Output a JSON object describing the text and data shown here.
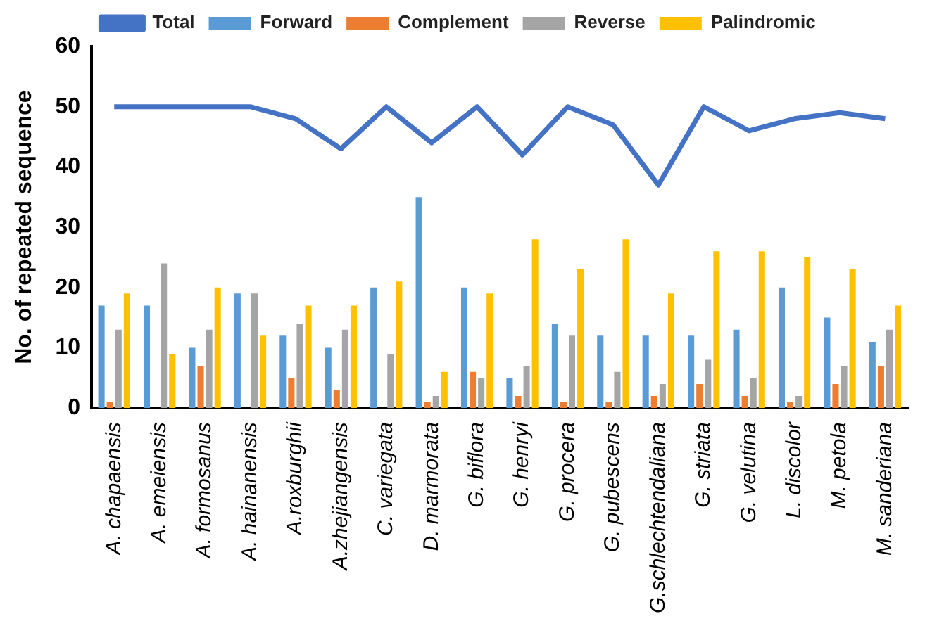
{
  "chart_data": {
    "type": "bar",
    "ylabel": "No. of repeated sequence",
    "categories": [
      "A. chapaensis",
      "A. emeiensis",
      "A. formosanus",
      "A. hainanensis",
      "A.roxburghii",
      "A.zhejiangensis",
      "C. variegata",
      "D. marmorata",
      "G. biflora",
      "G. henryi",
      "G. procera",
      "G. pubescens",
      "G.schlechtendaliana",
      "G. striata",
      "G. velutina",
      "L. discolor",
      "M. petola",
      "M. sanderiana"
    ],
    "series": [
      {
        "name": "Forward",
        "color": "#5b9bd5",
        "values": [
          17,
          17,
          10,
          19,
          12,
          10,
          20,
          35,
          20,
          5,
          14,
          12,
          12,
          12,
          13,
          20,
          15,
          11
        ]
      },
      {
        "name": "Complement",
        "color": "#ed7d31",
        "values": [
          1,
          0,
          7,
          0,
          5,
          3,
          0,
          1,
          6,
          2,
          1,
          1,
          2,
          4,
          2,
          1,
          4,
          7
        ]
      },
      {
        "name": "Reverse",
        "color": "#a5a5a5",
        "values": [
          13,
          24,
          13,
          19,
          14,
          13,
          9,
          2,
          5,
          7,
          12,
          6,
          4,
          8,
          5,
          2,
          7,
          13
        ]
      },
      {
        "name": "Palindromic",
        "color": "#ffc000",
        "values": [
          19,
          9,
          20,
          12,
          17,
          17,
          21,
          6,
          19,
          28,
          23,
          28,
          19,
          26,
          26,
          25,
          23,
          17
        ]
      },
      {
        "name": "Total",
        "type": "line",
        "color": "#4472c4",
        "values": [
          50,
          50,
          50,
          50,
          48,
          43,
          50,
          44,
          50,
          42,
          50,
          47,
          37,
          50,
          46,
          48,
          49,
          48
        ]
      }
    ],
    "ylim": [
      0,
      60
    ],
    "yticks": [
      0,
      10,
      20,
      30,
      40,
      50,
      60
    ],
    "grid": false,
    "legend": "top",
    "marker": "none"
  }
}
